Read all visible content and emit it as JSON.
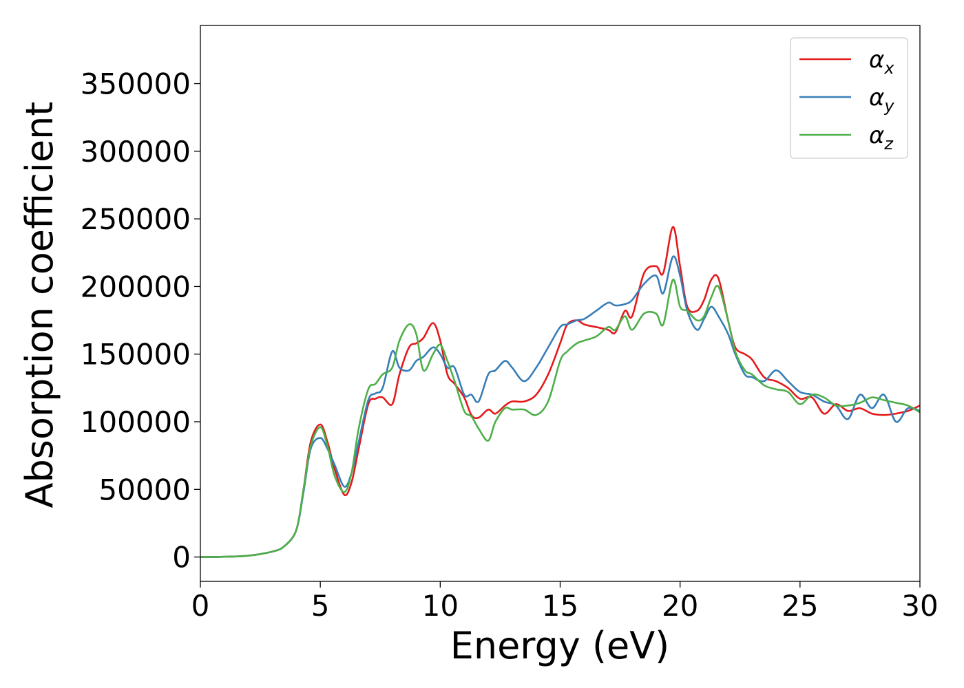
{
  "chart_data": {
    "type": "line",
    "title": "",
    "xlabel": "Energy (eV)",
    "ylabel": "Absorption coefficient",
    "xlim": [
      0,
      30
    ],
    "ylim": [
      -18000,
      393000
    ],
    "x_ticks": [
      0,
      5,
      10,
      15,
      20,
      25,
      30
    ],
    "y_ticks": [
      0,
      50000,
      100000,
      150000,
      200000,
      250000,
      300000,
      350000
    ],
    "grid": false,
    "legend_position": "top-right",
    "x": [
      0,
      1,
      2,
      3,
      3.5,
      4,
      4.3,
      4.6,
      5,
      5.3,
      5.6,
      6,
      6.3,
      6.6,
      7,
      7.3,
      7.6,
      8,
      8.3,
      8.7,
      9,
      9.3,
      9.7,
      10,
      10.3,
      10.6,
      11,
      11.3,
      11.6,
      12,
      12.3,
      12.7,
      13,
      13.5,
      14,
      14.5,
      15,
      15.3,
      15.7,
      16,
      16.5,
      17,
      17.3,
      17.7,
      18,
      18.5,
      19,
      19.3,
      19.7,
      20,
      20.3,
      20.7,
      21,
      21.3,
      21.6,
      22,
      22.3,
      22.7,
      23,
      23.5,
      24,
      24.5,
      25,
      25.5,
      26,
      26.5,
      27,
      27.5,
      28,
      28.5,
      29,
      29.5,
      30
    ],
    "series": [
      {
        "name": "α",
        "subscript": "x",
        "color": "#e41a1c",
        "values": [
          0,
          200,
          1000,
          4000,
          8000,
          20000,
          50000,
          85000,
          98000,
          85000,
          65000,
          46000,
          55000,
          80000,
          113000,
          117000,
          118000,
          113000,
          135000,
          155000,
          158000,
          162000,
          173000,
          160000,
          135000,
          128000,
          118000,
          105000,
          103000,
          109000,
          106000,
          112000,
          115000,
          115000,
          120000,
          135000,
          158000,
          172000,
          175000,
          172000,
          170000,
          168000,
          166000,
          182000,
          178000,
          210000,
          215000,
          210000,
          244000,
          215000,
          185000,
          182000,
          190000,
          205000,
          206000,
          175000,
          155000,
          150000,
          146000,
          133000,
          130000,
          125000,
          117000,
          118000,
          106000,
          113000,
          108000,
          110000,
          106000,
          105000,
          106000,
          108000,
          112000
        ]
      },
      {
        "name": "α",
        "subscript": "y",
        "color": "#377eb8",
        "values": [
          0,
          200,
          1000,
          4000,
          8000,
          20000,
          48000,
          80000,
          88000,
          80000,
          68000,
          52000,
          62000,
          85000,
          116000,
          121000,
          125000,
          152000,
          140000,
          138000,
          145000,
          148000,
          155000,
          150000,
          140000,
          140000,
          120000,
          120000,
          115000,
          135000,
          138000,
          145000,
          140000,
          130000,
          140000,
          155000,
          170000,
          172000,
          175000,
          176000,
          182000,
          188000,
          186000,
          187000,
          190000,
          202000,
          208000,
          195000,
          222000,
          208000,
          182000,
          168000,
          176000,
          185000,
          178000,
          165000,
          150000,
          135000,
          133000,
          130000,
          138000,
          130000,
          122000,
          120000,
          115000,
          112000,
          102000,
          120000,
          110000,
          120000,
          100000,
          110000,
          108000
        ]
      },
      {
        "name": "α",
        "subscript": "z",
        "color": "#4daf4a",
        "values": [
          0,
          200,
          1000,
          4000,
          8000,
          20000,
          50000,
          82000,
          96000,
          82000,
          60000,
          48000,
          62000,
          95000,
          124000,
          128000,
          135000,
          140000,
          160000,
          172000,
          165000,
          138000,
          150000,
          157000,
          145000,
          130000,
          108000,
          104000,
          95000,
          86000,
          100000,
          110000,
          109000,
          109000,
          105000,
          115000,
          145000,
          152000,
          158000,
          160000,
          163000,
          170000,
          168000,
          178000,
          168000,
          180000,
          180000,
          172000,
          205000,
          185000,
          182000,
          175000,
          178000,
          192000,
          200000,
          175000,
          152000,
          138000,
          135000,
          127000,
          124000,
          122000,
          113000,
          120000,
          118000,
          112000,
          112000,
          114000,
          118000,
          116000,
          114000,
          112000,
          107000
        ]
      }
    ]
  }
}
